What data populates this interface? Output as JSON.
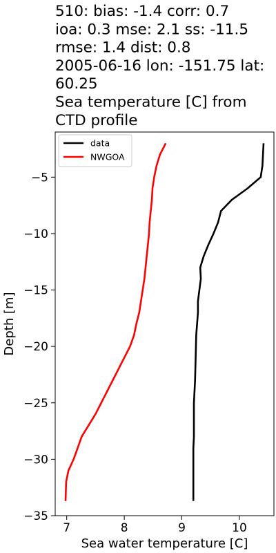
{
  "chart_data": {
    "type": "line",
    "title_lines": [
      "510: bias: -1.4  corr: 0.7",
      "ioa: 0.3  mse: 2.1  ss: -11.5",
      "rmse: 1.4  dist: 0.8",
      "2005-06-16 lon: -151.75 lat:",
      "60.25",
      "Sea temperature [C] from",
      "CTD profile"
    ],
    "xlabel": "Sea water temperature [C]",
    "ylabel": "Depth [m]",
    "xlim": [
      6.8,
      10.6
    ],
    "ylim": [
      -35,
      -1
    ],
    "xticks": [
      7,
      8,
      9,
      10
    ],
    "yticks": [
      -5,
      -10,
      -15,
      -20,
      -25,
      -30,
      -35
    ],
    "legend_position": "top-left",
    "grid": false,
    "series": [
      {
        "name": "data",
        "color": "#000000",
        "x": [
          10.42,
          10.41,
          10.4,
          10.37,
          10.14,
          9.87,
          9.68,
          9.63,
          9.55,
          9.46,
          9.38,
          9.32,
          9.33,
          9.28,
          9.28,
          9.25,
          9.24,
          9.23,
          9.22,
          9.21,
          9.21,
          9.21,
          9.2,
          9.2,
          9.2,
          9.2
        ],
        "y": [
          -2.0,
          -3.0,
          -4.0,
          -5.0,
          -6.0,
          -7.0,
          -8.0,
          -9.0,
          -10.0,
          -11.0,
          -12.0,
          -13.0,
          -14.0,
          -16.0,
          -17.0,
          -19.0,
          -21.0,
          -23.0,
          -24.0,
          -25.0,
          -27.0,
          -28.0,
          -29.0,
          -31.0,
          -32.0,
          -33.7
        ]
      },
      {
        "name": "NWGOA",
        "color": "#ff0000",
        "x": [
          8.72,
          8.62,
          8.56,
          8.52,
          8.49,
          8.48,
          8.46,
          8.44,
          8.43,
          8.41,
          8.39,
          8.37,
          8.35,
          8.32,
          8.29,
          8.26,
          8.21,
          8.17,
          8.1,
          8.0,
          7.9,
          7.8,
          7.7,
          7.6,
          7.5,
          7.26,
          7.12,
          7.03,
          6.99,
          6.98
        ],
        "y": [
          -2.0,
          -3.0,
          -4.0,
          -5.0,
          -6.0,
          -7.0,
          -8.0,
          -9.0,
          -10.0,
          -11.0,
          -12.0,
          -13.0,
          -14.0,
          -15.0,
          -16.0,
          -17.0,
          -18.0,
          -19.0,
          -20.0,
          -21.0,
          -22.0,
          -23.0,
          -24.0,
          -25.0,
          -26.0,
          -28.0,
          -30.0,
          -31.0,
          -32.0,
          -33.7
        ]
      }
    ]
  }
}
